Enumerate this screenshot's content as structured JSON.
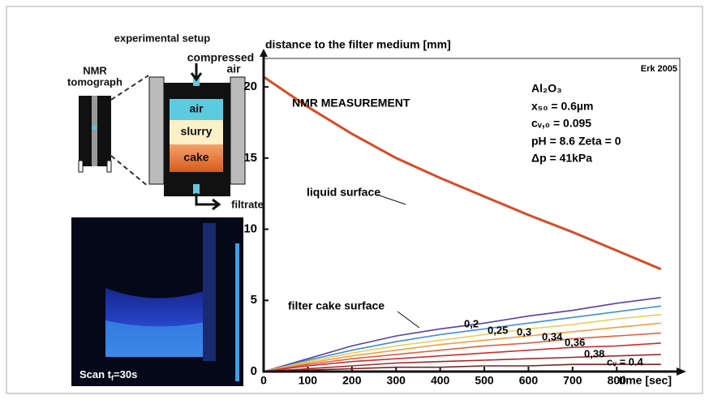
{
  "setup": {
    "title": "experimental setup",
    "tomograph": [
      "NMR",
      "tomograph"
    ],
    "compressed_air": [
      "compressed",
      "air"
    ],
    "layers": [
      "air",
      "slurry",
      "cake"
    ],
    "filtrate": "filtrate",
    "scan": {
      "prefix": "Scan t",
      "subscript": "f",
      "suffix": "=30s"
    }
  },
  "chart_data": {
    "type": "line",
    "y_label": "distance to the filter medium [mm]",
    "x_label": "time [sec]",
    "annotations": [
      "Erk 2005",
      "NMR MEASUREMENT",
      "Al₂O₃",
      "x₅₀ = 0.6µm",
      "cᵥ,₀ = 0.095",
      "pH = 8.6   Zeta = 0",
      "Δp = 41kPa",
      "liquid surface",
      "filter cake surface"
    ],
    "x": [
      0,
      100,
      200,
      300,
      400,
      500,
      600,
      700,
      800,
      900
    ],
    "series": [
      {
        "name": "liquid surface",
        "color": "#d94a25",
        "values": [
          20.7,
          18.6,
          16.7,
          15.0,
          13.6,
          12.3,
          11.0,
          9.8,
          8.5,
          7.2
        ]
      },
      {
        "name": "filter cake surface",
        "color": "#5a3fa8",
        "values": [
          0,
          0.9,
          1.8,
          2.5,
          3.0,
          3.4,
          3.9,
          4.3,
          4.8,
          5.2
        ]
      },
      {
        "name": "0,2",
        "color": "#3f8fd8",
        "values": [
          0,
          0.8,
          1.5,
          2.1,
          2.6,
          3.0,
          3.4,
          3.8,
          4.2,
          4.6
        ]
      },
      {
        "name": "0,25",
        "color": "#e8cf5a",
        "values": [
          0,
          0.7,
          1.3,
          1.8,
          2.2,
          2.6,
          3.0,
          3.3,
          3.7,
          4.0
        ]
      },
      {
        "name": "0,3",
        "color": "#f0a040",
        "values": [
          0,
          0.6,
          1.1,
          1.5,
          1.9,
          2.2,
          2.5,
          2.8,
          3.1,
          3.4
        ]
      },
      {
        "name": "0,34",
        "color": "#e06040",
        "values": [
          0,
          0.5,
          0.9,
          1.2,
          1.5,
          1.8,
          2.0,
          2.3,
          2.5,
          2.7
        ]
      },
      {
        "name": "0,36",
        "color": "#c83030",
        "values": [
          0,
          0.4,
          0.7,
          0.9,
          1.1,
          1.3,
          1.5,
          1.7,
          1.8,
          2.0
        ]
      },
      {
        "name": "0,38",
        "color": "#a02828",
        "values": [
          0,
          0.2,
          0.4,
          0.6,
          0.7,
          0.8,
          0.9,
          1.0,
          1.1,
          1.2
        ]
      },
      {
        "name": "cᵥ = 0.4",
        "color": "#7a2020",
        "values": [
          0,
          0.1,
          0.2,
          0.3,
          0.3,
          0.4,
          0.4,
          0.5,
          0.5,
          0.5
        ]
      }
    ],
    "xlim": [
      0,
      930
    ],
    "ylim": [
      0,
      22
    ],
    "xticks": [
      0,
      100,
      200,
      300,
      400,
      500,
      600,
      700,
      800
    ],
    "yticks": [
      0,
      5,
      10,
      15,
      20
    ]
  }
}
